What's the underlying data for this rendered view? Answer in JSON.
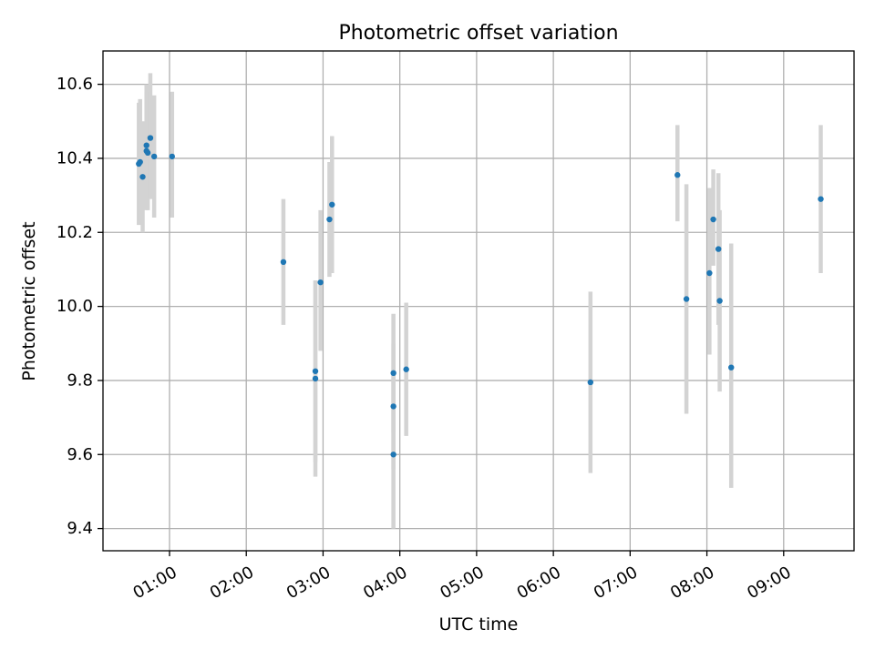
{
  "chart_data": {
    "type": "scatter",
    "title": "Photometric offset variation",
    "xlabel": "UTC time",
    "ylabel": "Photometric offset",
    "x_tick_labels": [
      "01:00",
      "02:00",
      "03:00",
      "04:00",
      "05:00",
      "06:00",
      "07:00",
      "08:00",
      "09:00"
    ],
    "y_tick_labels": [
      "9.4",
      "9.6",
      "9.8",
      "10.0",
      "10.2",
      "10.4",
      "10.6"
    ],
    "xlim": [
      "00:08",
      "09:55"
    ],
    "ylim": [
      9.34,
      10.69
    ],
    "grid": true,
    "legend": "none",
    "series": [
      {
        "marker_color": "#1f77b4",
        "errorbar_color": "#d3d3d3",
        "points": [
          {
            "x": "00:36",
            "y": 10.385,
            "yerr_low": 10.22,
            "yerr_high": 10.55
          },
          {
            "x": "00:37",
            "y": 10.39,
            "yerr_low": 10.23,
            "yerr_high": 10.56
          },
          {
            "x": "00:39",
            "y": 10.35,
            "yerr_low": 10.2,
            "yerr_high": 10.5
          },
          {
            "x": "00:42",
            "y": 10.435,
            "yerr_low": 10.27,
            "yerr_high": 10.6
          },
          {
            "x": "00:42",
            "y": 10.42,
            "yerr_low": 10.26,
            "yerr_high": 10.58
          },
          {
            "x": "00:43",
            "y": 10.415,
            "yerr_low": 10.26,
            "yerr_high": 10.57
          },
          {
            "x": "00:45",
            "y": 10.455,
            "yerr_low": 10.29,
            "yerr_high": 10.63
          },
          {
            "x": "00:48",
            "y": 10.405,
            "yerr_low": 10.24,
            "yerr_high": 10.57
          },
          {
            "x": "01:02",
            "y": 10.405,
            "yerr_low": 10.24,
            "yerr_high": 10.58
          },
          {
            "x": "02:29",
            "y": 10.12,
            "yerr_low": 9.95,
            "yerr_high": 10.29
          },
          {
            "x": "02:54",
            "y": 9.805,
            "yerr_low": 9.54,
            "yerr_high": 10.07
          },
          {
            "x": "02:54",
            "y": 9.825,
            "yerr_low": 9.58,
            "yerr_high": 10.07
          },
          {
            "x": "02:58",
            "y": 10.065,
            "yerr_low": 9.88,
            "yerr_high": 10.26
          },
          {
            "x": "03:05",
            "y": 10.235,
            "yerr_low": 10.08,
            "yerr_high": 10.39
          },
          {
            "x": "03:07",
            "y": 10.275,
            "yerr_low": 10.09,
            "yerr_high": 10.46
          },
          {
            "x": "03:55",
            "y": 9.82,
            "yerr_low": 9.66,
            "yerr_high": 9.98
          },
          {
            "x": "03:55",
            "y": 9.73,
            "yerr_low": 9.56,
            "yerr_high": 9.9
          },
          {
            "x": "03:55",
            "y": 9.6,
            "yerr_low": 9.4,
            "yerr_high": 9.8
          },
          {
            "x": "04:05",
            "y": 9.83,
            "yerr_low": 9.65,
            "yerr_high": 10.01
          },
          {
            "x": "06:29",
            "y": 9.795,
            "yerr_low": 9.55,
            "yerr_high": 10.04
          },
          {
            "x": "07:37",
            "y": 10.355,
            "yerr_low": 10.23,
            "yerr_high": 10.49
          },
          {
            "x": "07:44",
            "y": 10.02,
            "yerr_low": 9.71,
            "yerr_high": 10.33
          },
          {
            "x": "08:02",
            "y": 10.09,
            "yerr_low": 9.87,
            "yerr_high": 10.32
          },
          {
            "x": "08:05",
            "y": 10.235,
            "yerr_low": 10.11,
            "yerr_high": 10.37
          },
          {
            "x": "08:09",
            "y": 10.155,
            "yerr_low": 9.95,
            "yerr_high": 10.36
          },
          {
            "x": "08:10",
            "y": 10.015,
            "yerr_low": 9.77,
            "yerr_high": 10.26
          },
          {
            "x": "08:19",
            "y": 9.835,
            "yerr_low": 9.51,
            "yerr_high": 10.17
          },
          {
            "x": "09:29",
            "y": 10.29,
            "yerr_low": 10.09,
            "yerr_high": 10.49
          }
        ]
      }
    ]
  }
}
